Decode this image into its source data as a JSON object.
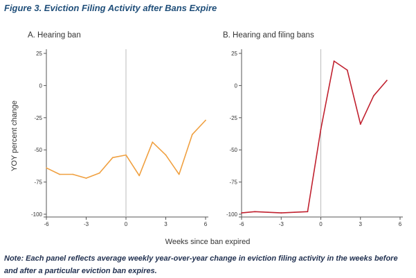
{
  "figure_title": "Figure 3. Eviction Filing Activity after Bans Expire",
  "note": "Note: Each panel reflects average weekly year-over-year change in eviction filing activity in the weeks before and after a particular eviction ban expires.",
  "chart_data": [
    {
      "type": "line",
      "title": "A. Hearing ban",
      "xlabel": "Weeks since ban expired",
      "ylabel": "YOY percent change",
      "xlim": [
        -6,
        6
      ],
      "ylim": [
        -100,
        25
      ],
      "xticks": [
        -6,
        -3,
        0,
        3,
        6
      ],
      "yticks": [
        25,
        0,
        -25,
        -50,
        -75,
        -100
      ],
      "color": "#f0a040",
      "x": [
        -6,
        -5,
        -4,
        -3,
        -2,
        -1,
        0,
        1,
        2,
        3,
        4,
        5,
        6
      ],
      "y": [
        -64,
        -69,
        -69,
        -72,
        -68,
        -56,
        -54,
        -70,
        -44,
        -54,
        -69,
        -38,
        -27
      ]
    },
    {
      "type": "line",
      "title": "B. Hearing and filing bans",
      "xlabel": "Weeks since ban expired",
      "ylabel": "YOY percent change",
      "xlim": [
        -6,
        6
      ],
      "ylim": [
        -100,
        25
      ],
      "xticks": [
        -6,
        -3,
        0,
        3,
        6
      ],
      "yticks": [
        25,
        0,
        -25,
        -50,
        -75,
        -100
      ],
      "color": "#c0202e",
      "x": [
        -6,
        -5,
        -4,
        -3,
        -2,
        -1,
        0,
        1,
        2,
        3,
        4,
        5
      ],
      "y": [
        -99,
        -98,
        -98.5,
        -99,
        -98.5,
        -98,
        -34,
        19,
        12,
        -30,
        -8,
        4
      ]
    }
  ],
  "shared_xlabel": "Weeks since ban expired",
  "shared_ylabel": "YOY percent change"
}
